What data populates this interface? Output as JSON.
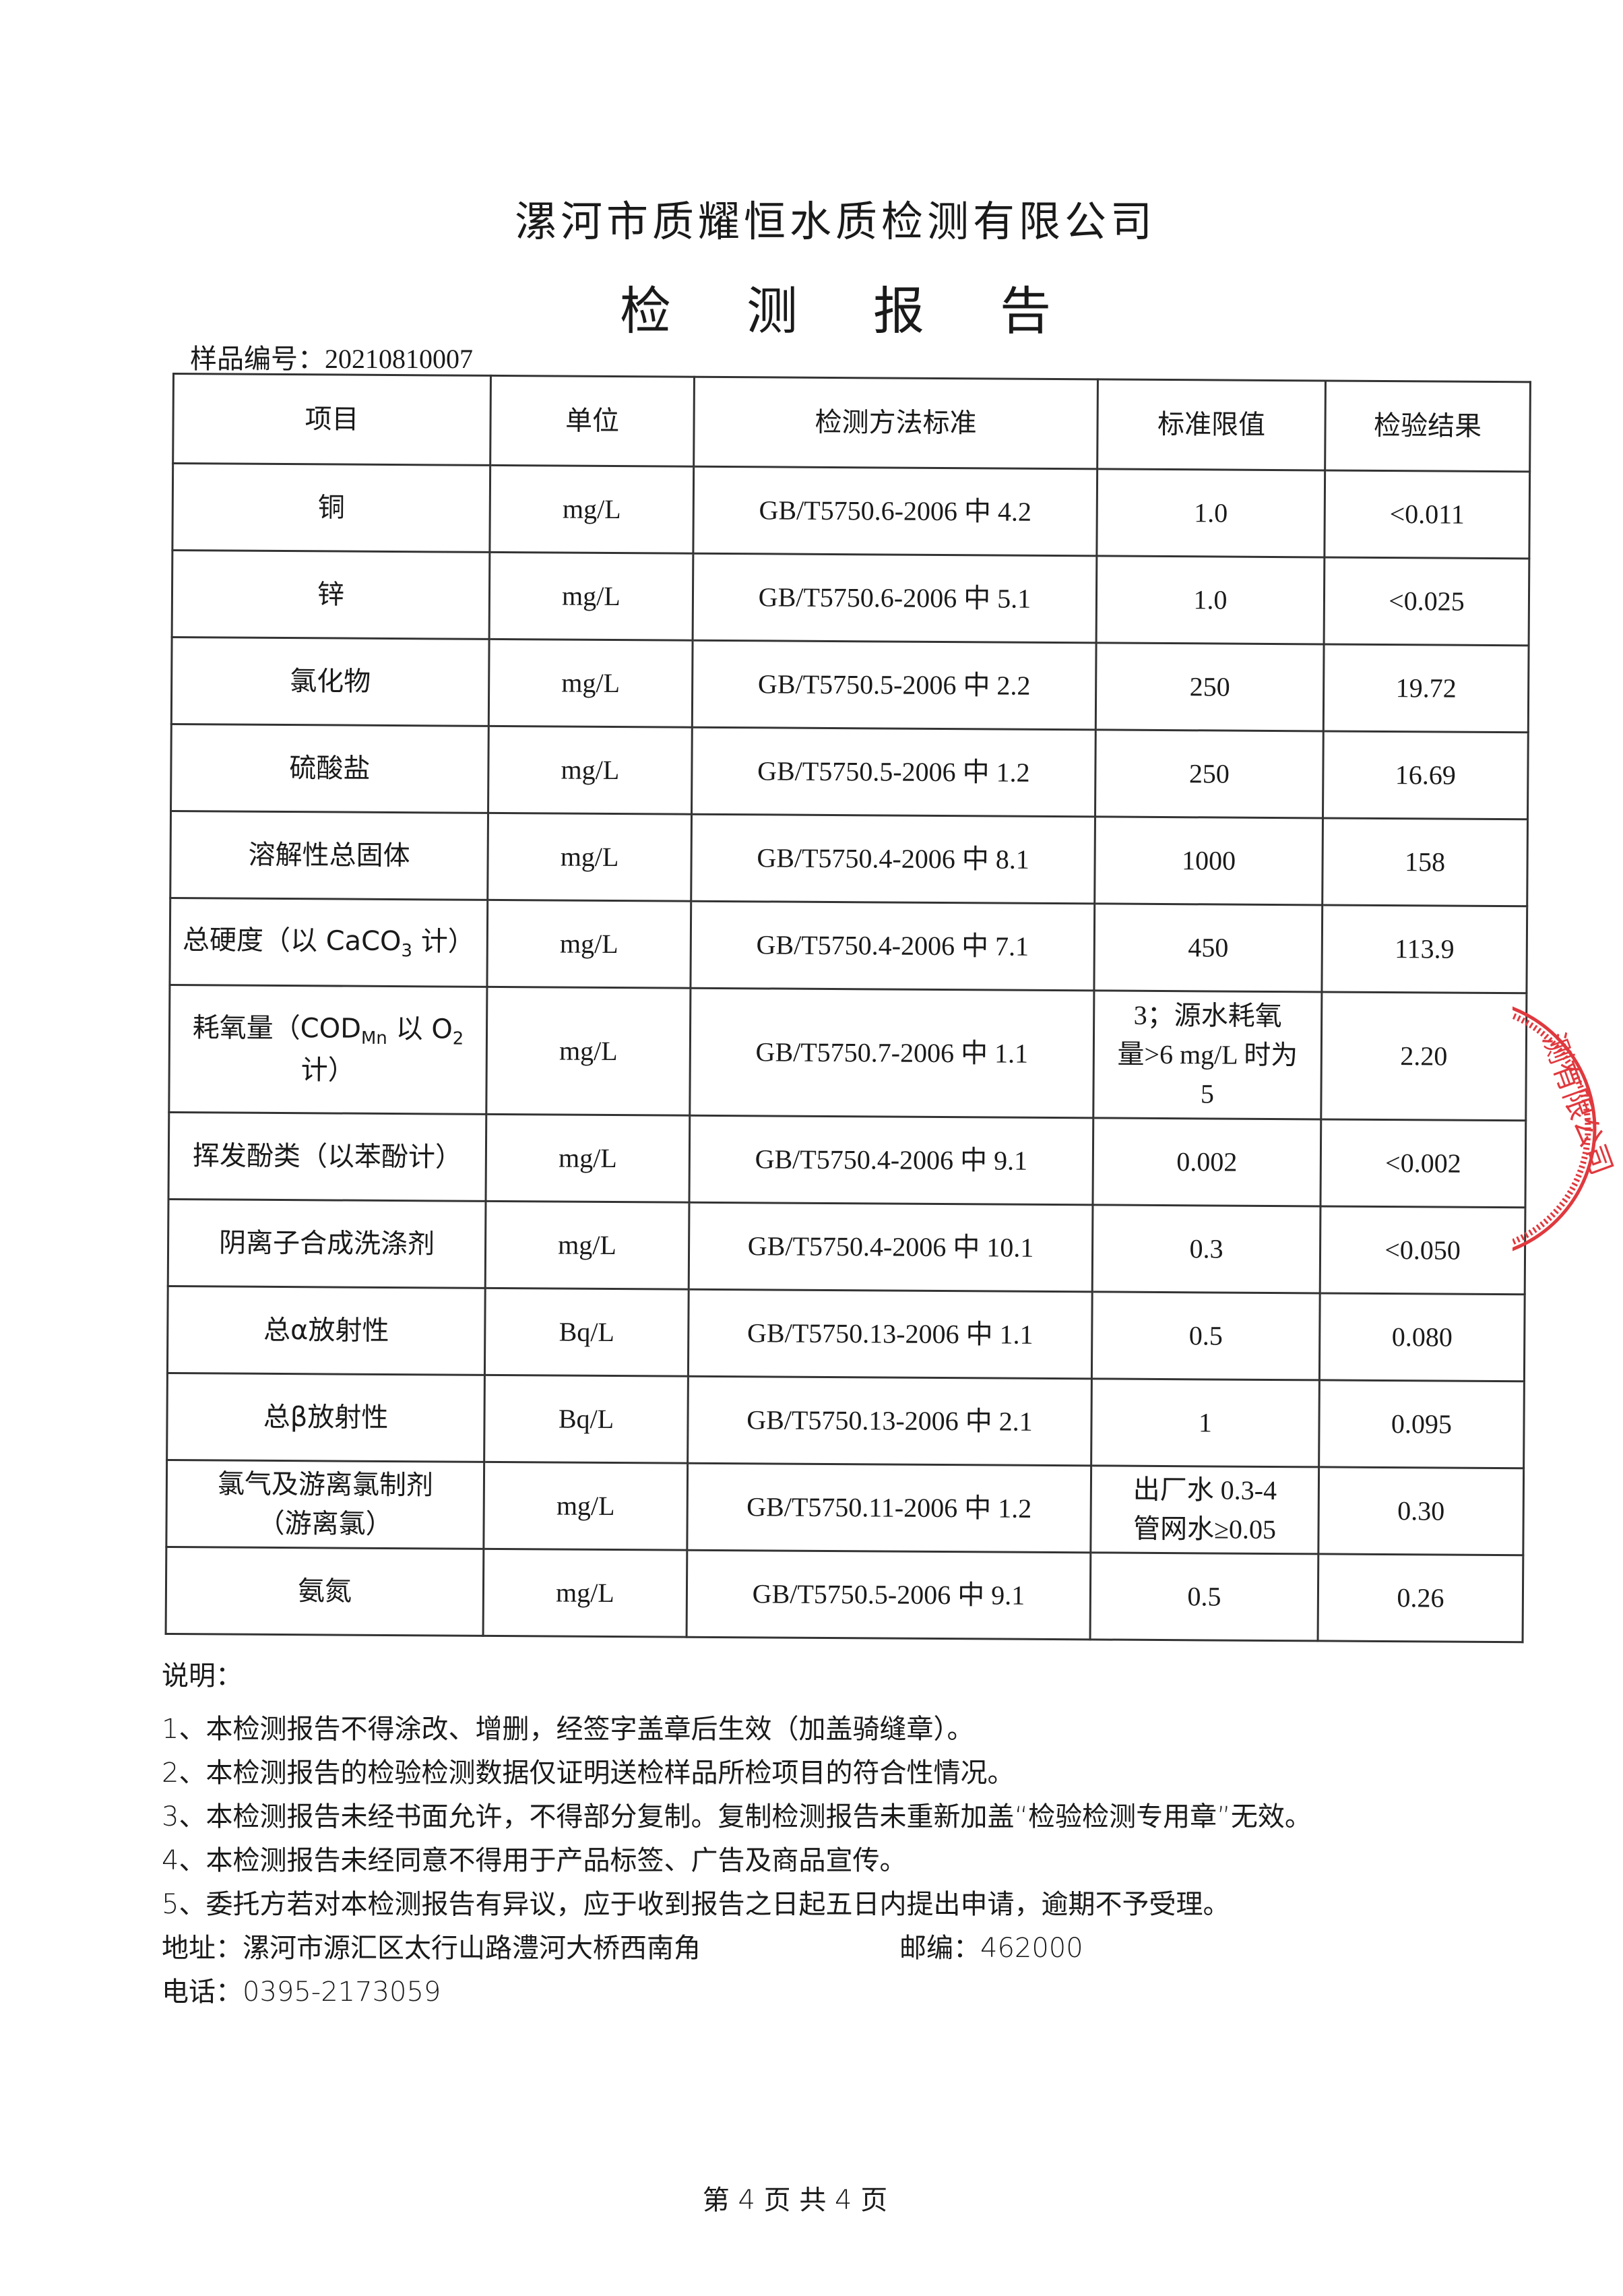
{
  "header": {
    "company": "漯河市质耀恒水质检测有限公司",
    "title_chars": [
      "检",
      "测",
      "报",
      "告"
    ],
    "sample_no_label": "样品编号：",
    "sample_no": "20210810007"
  },
  "table": {
    "columns": [
      "项目",
      "单位",
      "检测方法标准",
      "标准限值",
      "检验结果"
    ],
    "rows": [
      {
        "item": [
          {
            "t": "铜"
          }
        ],
        "unit": "mg/L",
        "method": "GB/T5750.6-2006 中 4.2",
        "limit": [
          "1.0"
        ],
        "result": "<0.011"
      },
      {
        "item": [
          {
            "t": "锌"
          }
        ],
        "unit": "mg/L",
        "method": "GB/T5750.6-2006 中 5.1",
        "limit": [
          "1.0"
        ],
        "result": "<0.025"
      },
      {
        "item": [
          {
            "t": "氯化物"
          }
        ],
        "unit": "mg/L",
        "method": "GB/T5750.5-2006 中 2.2",
        "limit": [
          "250"
        ],
        "result": "19.72"
      },
      {
        "item": [
          {
            "t": "硫酸盐"
          }
        ],
        "unit": "mg/L",
        "method": "GB/T5750.5-2006 中 1.2",
        "limit": [
          "250"
        ],
        "result": "16.69"
      },
      {
        "item": [
          {
            "t": "溶解性总固体"
          }
        ],
        "unit": "mg/L",
        "method": "GB/T5750.4-2006 中 8.1",
        "limit": [
          "1000"
        ],
        "result": "158"
      },
      {
        "item": [
          {
            "t": "总硬度（以 CaCO"
          },
          {
            "sub": "3"
          },
          {
            "t": " 计）"
          }
        ],
        "unit": "mg/L",
        "method": "GB/T5750.4-2006 中 7.1",
        "limit": [
          "450"
        ],
        "result": "113.9"
      },
      {
        "item": [
          {
            "t": "耗氧量（COD"
          },
          {
            "sub": "Mn"
          },
          {
            "t": " 以 O"
          },
          {
            "sub": "2"
          },
          {
            "br": true
          },
          {
            "t": "计）"
          }
        ],
        "unit": "mg/L",
        "method": "GB/T5750.7-2006 中 1.1",
        "limit": [
          "3；源水耗氧",
          "量>6 mg/L 时为",
          "5"
        ],
        "result": "2.20"
      },
      {
        "item": [
          {
            "t": "挥发酚类（以苯酚计）"
          }
        ],
        "unit": "mg/L",
        "method": "GB/T5750.4-2006 中 9.1",
        "limit": [
          "0.002"
        ],
        "result": "<0.002"
      },
      {
        "item": [
          {
            "t": "阴离子合成洗涤剂"
          }
        ],
        "unit": "mg/L",
        "method": "GB/T5750.4-2006 中 10.1",
        "limit": [
          "0.3"
        ],
        "result": "<0.050"
      },
      {
        "item": [
          {
            "t": "总α放射性"
          }
        ],
        "unit": "Bq/L",
        "method": "GB/T5750.13-2006 中 1.1",
        "limit": [
          "0.5"
        ],
        "result": "0.080"
      },
      {
        "item": [
          {
            "t": "总β放射性"
          }
        ],
        "unit": "Bq/L",
        "method": "GB/T5750.13-2006 中 2.1",
        "limit": [
          "1"
        ],
        "result": "0.095"
      },
      {
        "item": [
          {
            "t": "氯气及游离氯制剂"
          },
          {
            "br": true
          },
          {
            "t": "（游离氯）"
          }
        ],
        "unit": "mg/L",
        "method": "GB/T5750.11-2006 中 1.2",
        "limit": [
          "出厂水 0.3-4",
          "管网水≥0.05"
        ],
        "result": "0.30"
      },
      {
        "item": [
          {
            "t": "氨氮"
          }
        ],
        "unit": "mg/L",
        "method": "GB/T5750.5-2006 中 9.1",
        "limit": [
          "0.5"
        ],
        "result": "0.26"
      }
    ]
  },
  "notes": {
    "heading": "说明：",
    "items": [
      "1、本检测报告不得涂改、增删，经签字盖章后生效（加盖骑缝章）。",
      "2、本检测报告的检验检测数据仅证明送检样品所检项目的符合性情况。",
      "3、本检测报告未经书面允许，不得部分复制。复制检测报告未重新加盖“检验检测专用章”无效。",
      "4、本检测报告未经同意不得用于产品标签、广告及商品宣传。",
      "5、委托方若对本检测报告有异议，应于收到报告之日起五日内提出申请，逾期不予受理。"
    ],
    "address": "地址：漯河市源汇区太行山路澧河大桥西南角",
    "postcode": "邮编：462000",
    "phone": "电话：0395-2173059"
  },
  "footer": {
    "page": "第 4 页 共 4 页"
  },
  "seal": {
    "text": "测有限公司",
    "color": "#e0393e"
  }
}
